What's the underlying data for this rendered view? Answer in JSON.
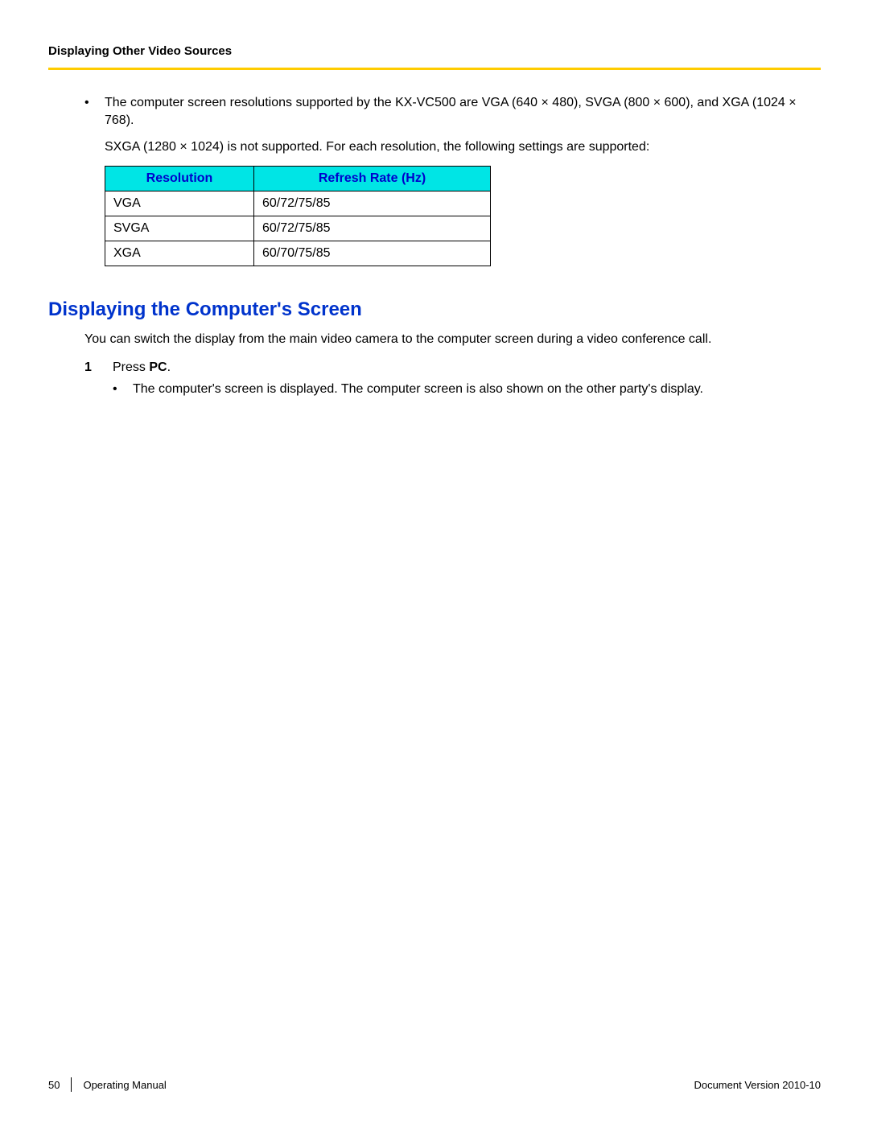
{
  "header": {
    "title": "Displaying Other Video Sources",
    "divider_color": "#ffcc00"
  },
  "intro_bullet": {
    "line1": "The computer screen resolutions supported by the KX-VC500 are VGA (640 × 480), SVGA (800 × 600), and XGA (1024 × 768).",
    "line2": "SXGA (1280 × 1024) is not supported. For each resolution, the following settings are supported:"
  },
  "resolution_table": {
    "header_bg": "#00e5e5",
    "header_text_color": "#0000cc",
    "border_color": "#000000",
    "columns": [
      "Resolution",
      "Refresh Rate (Hz)"
    ],
    "rows": [
      [
        "VGA",
        "60/72/75/85"
      ],
      [
        "SVGA",
        "60/72/75/85"
      ],
      [
        "XGA",
        "60/70/75/85"
      ]
    ]
  },
  "section": {
    "heading": "Displaying the Computer's Screen",
    "heading_color": "#0033cc",
    "intro": "You can switch the display from the main video camera to the computer screen during a video conference call.",
    "step_number": "1",
    "step_prefix": "Press ",
    "step_bold": "PC",
    "step_suffix": ".",
    "sub_bullet": "The computer's screen is displayed. The computer screen is also shown on the other party's display."
  },
  "footer": {
    "page": "50",
    "title": "Operating Manual",
    "version_label": "Document Version  2010-10"
  }
}
